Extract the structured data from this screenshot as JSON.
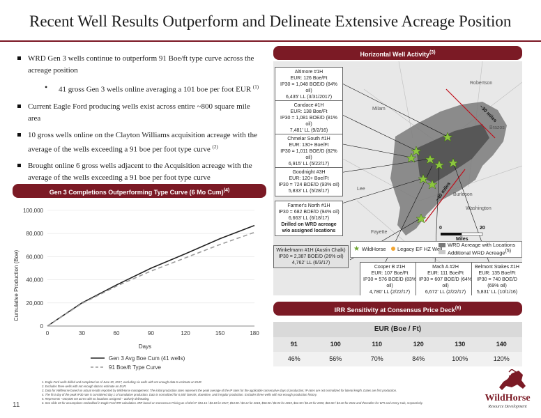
{
  "title": "Recent Well Results Outperform and Delineate Extensive Acreage Position",
  "bullets": [
    "WRD Gen 3 wells continue to outperform 91 Boe/ft type curve across the acreage position",
    "Current Eagle Ford producing wells exist across entire ~800 square mile area",
    "10 gross wells online on the Clayton Williams acquisition acreage with the average of the wells exceeding a 91 boe per foot type curve",
    "Brought online 6 gross wells adjacent to the Acquisition acreage with the average of the wells exceeding a 91 boe per foot type curve"
  ],
  "sub_bullet": "41 gross Gen 3 wells online averaging a 101 boe per foot EUR",
  "sup_1": "(1)",
  "sup_2": "(2)",
  "left_banner": "Gen 3 Completions Outperforming Type Curve (6 Mo Cum)",
  "left_banner_sup": "(4)",
  "map_banner": "Horizontal Well Activity",
  "map_banner_sup": "(3)",
  "irr_banner": "IRR Sensitivity at Consensus Price Deck",
  "irr_banner_sup": "(6)",
  "chart_data": {
    "type": "line",
    "x": [
      0,
      30,
      60,
      90,
      120,
      150,
      180
    ],
    "series": [
      {
        "name": "Gen 3 Avg Boe Cum (41 wells)",
        "color": "#222222",
        "style": "solid",
        "values": [
          0,
          20000,
          35500,
          50000,
          62500,
          75500,
          87000
        ]
      },
      {
        "name": "91 Boe/ft Type Curve",
        "color": "#9a9a9a",
        "style": "dashed",
        "values": [
          0,
          19500,
          34500,
          47500,
          59000,
          70500,
          81000
        ]
      }
    ],
    "xlabel": "Days",
    "ylabel": "Cumulative Production (Boe)",
    "xlim": [
      0,
      180
    ],
    "ylim": [
      0,
      100000
    ],
    "x_ticks": [
      "0",
      "30",
      "60",
      "90",
      "120",
      "150",
      "180"
    ],
    "y_ticks": [
      "0",
      "20,000",
      "40,000",
      "60,000",
      "80,000",
      "100,000"
    ],
    "legend_position": "bottom"
  },
  "map": {
    "callouts": [
      [
        "Altimore #1H",
        "EUR: 126 Boe/Ft",
        "IP30 = 1,048 BOE/D (84% oil)",
        "6,435' LL (3/31/2017)"
      ],
      [
        "Candace #1H",
        "EUR: 138 Boe/Ft",
        "IP30 = 1,081 BOE/D (81% oil)",
        "7,481' LL (9/2/16)"
      ],
      [
        "Chmelar South #1H",
        "EUR: 130+ Boe/Ft",
        "IP30 = 1,011 BOE/D (82% oil)",
        "6,915' LL (5/22/17)"
      ],
      [
        "Goodnight #3H",
        "EUR: 120+ Boe/Ft",
        "IP30 = 724 BOE/D (93% oil)",
        "5,833' LL (5/28/17)"
      ],
      [
        "Farmer's North #1H",
        "IP30 = 682 BOE/D (94% oil)",
        "6,663' LL (6/18/17)",
        "Drilled on WRD acreage",
        "w/o assigned locations"
      ],
      [
        "Winkelmann #1H (Austin Chalk)",
        "IP30 = 2,387 BOE/D (26% oil)",
        "4,762' LL (6/3/17)"
      ],
      [
        "Cooper B #1H",
        "EUR: 107 Boe/Ft",
        "IP30 = 576 BOE/D (83% oil)",
        "4,780' LL (2/22/17)"
      ],
      [
        "Mach A #2H",
        "EUR: 111 Boe/Ft",
        "IP30 = 607 BOE/D (64% oil)",
        "6,672' LL (2/22/17)"
      ],
      [
        "Belmont Stakes #1H",
        "EUR: 135 Boe/Ft",
        "IP30 = 740 BOE/D (69% oil)",
        "5,831' LL (10/1/16)"
      ]
    ],
    "places": [
      "Robertson",
      "Milam",
      "Brazos",
      "Lee",
      "Burleson",
      "Washington",
      "Fayette"
    ],
    "dist_30": "~30 miles",
    "dist_40": "~40 miles",
    "scale_0": "0",
    "scale_20": "20",
    "scale_unit": "Miles",
    "legend": {
      "wildhorse": "WildHorse",
      "legacy": "Legacy EF HZ Well",
      "wrd_locations": "WRD Acreage with Locations",
      "additional": "Additional WRD Acreage",
      "additional_sup": "(5)"
    }
  },
  "irr": {
    "header": "EUR (Boe / Ft)",
    "eur": [
      "91",
      "100",
      "110",
      "120",
      "130",
      "140"
    ],
    "irr": [
      "46%",
      "56%",
      "70%",
      "84%",
      "100%",
      "120%"
    ]
  },
  "footnotes": [
    "1.   Eagle Ford wells drilled and completed as of June 30, 2017, excluding six wells with not enough data to estimate an EUR.",
    "2.   Excludes three wells with not enough data to estimate an EUR.",
    "3.   Data for WildHorse based on actual results reported by WildHorse management. The initial production rates represent the peak average of the IP rates for the applicable consecutive days of production; IP rates are not normalized for lateral length. Dates are first production.",
    "4.   The first day of the peak IP30 rate is considered day 1 of cumulative production. Data is normalized for 6,500' laterals, downtime, and irregular production. Excludes three wells with not enough production history.",
    "5.   Represents ~150,000 net acres with no locations assigned – actively delineating.",
    "6.   See slide 28 for assumptions embedded in Eagle Ford IRR calculation. IRR based on Consensus Pricing as of 8/2/17: $51.16 / $3.18 for 2017, $54.90 / $3.14 for 2018, $58.00 / $3.03 for 2019, $62.50 / $3.20 for 2020, $66.50 / $3.40 for 2021 and thereafter for WTI and Henry Hub, respectively."
  ],
  "page_number": "11",
  "logo": {
    "name": "WildHorse",
    "tagline": "Resource Development"
  }
}
